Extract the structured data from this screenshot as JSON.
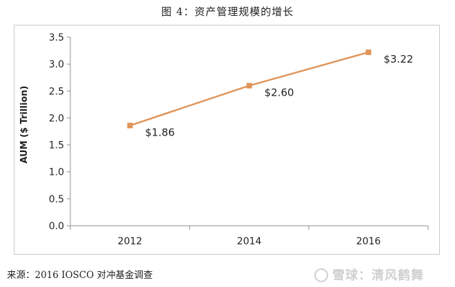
{
  "title": "图 4：资产管理规模的增长",
  "source": "来源：2016 IOSCO 对冲基金调查",
  "watermark": "雪球：清风鹤舞",
  "colors": {
    "series": "#e0955a",
    "axis": "#8c8c8c",
    "text": "#222222"
  },
  "chart_data": {
    "type": "line",
    "title": "图 4：资产管理规模的增长",
    "xlabel": "",
    "ylabel": "AUM ($ Trillion)",
    "categories": [
      "2012",
      "2014",
      "2016"
    ],
    "series": [
      {
        "values": [
          1.86,
          2.6,
          3.22
        ],
        "labels": [
          "$1.86",
          "$2.60",
          "$3.22"
        ]
      }
    ],
    "ylim": [
      0,
      3.5
    ],
    "yticks": [
      0.0,
      0.5,
      1.0,
      1.5,
      2.0,
      2.5,
      3.0,
      3.5
    ],
    "ytick_labels": [
      "0.0",
      "0.5",
      "1.0",
      "1.5",
      "2.0",
      "2.5",
      "3.0",
      "3.5"
    ],
    "grid": false,
    "legend": "none"
  }
}
